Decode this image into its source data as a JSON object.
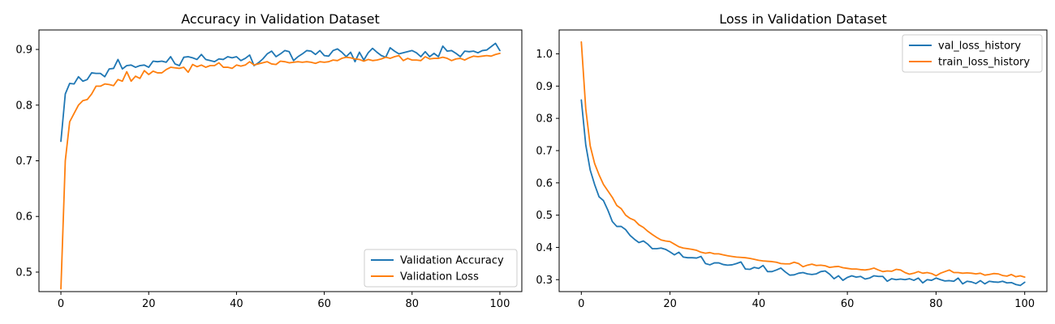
{
  "chart_data": [
    {
      "type": "line",
      "title": "Accuracy in Validation Dataset",
      "xlabel": "",
      "ylabel": "",
      "xlim": [
        -5,
        105
      ],
      "ylim": [
        0.465,
        0.935
      ],
      "xticks": [
        0,
        20,
        40,
        60,
        80,
        100
      ],
      "yticks": [
        0.5,
        0.6,
        0.7,
        0.8,
        0.9
      ],
      "xtick_labels": [
        "0",
        "20",
        "40",
        "60",
        "80",
        "100"
      ],
      "ytick_labels": [
        "0.5",
        "0.6",
        "0.7",
        "0.8",
        "0.9"
      ],
      "legend_position": "lower-right",
      "series": [
        {
          "name": "Validation Accuracy",
          "color": "#1f77b4",
          "values": [
            0.735,
            0.82,
            0.839,
            0.838,
            0.851,
            0.843,
            0.846,
            0.858,
            0.857,
            0.857,
            0.851,
            0.865,
            0.866,
            0.882,
            0.865,
            0.871,
            0.872,
            0.868,
            0.871,
            0.872,
            0.868,
            0.879,
            0.878,
            0.879,
            0.877,
            0.887,
            0.874,
            0.871,
            0.886,
            0.887,
            0.885,
            0.882,
            0.891,
            0.882,
            0.88,
            0.878,
            0.883,
            0.882,
            0.887,
            0.885,
            0.887,
            0.88,
            0.884,
            0.89,
            0.871,
            0.876,
            0.883,
            0.892,
            0.897,
            0.887,
            0.892,
            0.898,
            0.896,
            0.88,
            0.887,
            0.892,
            0.898,
            0.897,
            0.891,
            0.898,
            0.889,
            0.888,
            0.898,
            0.901,
            0.895,
            0.887,
            0.895,
            0.878,
            0.895,
            0.881,
            0.894,
            0.902,
            0.895,
            0.889,
            0.886,
            0.903,
            0.897,
            0.892,
            0.894,
            0.896,
            0.898,
            0.894,
            0.887,
            0.896,
            0.887,
            0.893,
            0.887,
            0.906,
            0.897,
            0.898,
            0.893,
            0.887,
            0.897,
            0.896,
            0.897,
            0.894,
            0.898,
            0.899,
            0.905,
            0.911,
            0.898
          ]
        },
        {
          "name": "Validation Loss",
          "color": "#ff7f0e",
          "values": [
            0.47,
            0.7,
            0.77,
            0.785,
            0.8,
            0.808,
            0.81,
            0.82,
            0.834,
            0.834,
            0.838,
            0.837,
            0.835,
            0.846,
            0.843,
            0.86,
            0.843,
            0.852,
            0.848,
            0.862,
            0.855,
            0.861,
            0.858,
            0.858,
            0.864,
            0.868,
            0.867,
            0.866,
            0.868,
            0.859,
            0.873,
            0.869,
            0.872,
            0.868,
            0.871,
            0.871,
            0.876,
            0.868,
            0.868,
            0.866,
            0.872,
            0.87,
            0.872,
            0.878,
            0.872,
            0.874,
            0.876,
            0.878,
            0.874,
            0.873,
            0.879,
            0.878,
            0.876,
            0.877,
            0.878,
            0.877,
            0.878,
            0.877,
            0.875,
            0.878,
            0.877,
            0.878,
            0.881,
            0.88,
            0.884,
            0.886,
            0.885,
            0.883,
            0.882,
            0.879,
            0.882,
            0.88,
            0.881,
            0.883,
            0.886,
            0.884,
            0.887,
            0.889,
            0.88,
            0.884,
            0.881,
            0.881,
            0.88,
            0.887,
            0.883,
            0.884,
            0.884,
            0.886,
            0.884,
            0.88,
            0.883,
            0.884,
            0.881,
            0.885,
            0.888,
            0.887,
            0.888,
            0.889,
            0.888,
            0.891,
            0.893
          ]
        }
      ]
    },
    {
      "type": "line",
      "title": "Loss in Validation Dataset",
      "xlabel": "",
      "ylabel": "",
      "xlim": [
        -5,
        105
      ],
      "ylim": [
        0.263,
        1.074
      ],
      "xticks": [
        0,
        20,
        40,
        60,
        80,
        100
      ],
      "yticks": [
        0.3,
        0.4,
        0.5,
        0.6,
        0.7,
        0.8,
        0.9,
        1.0
      ],
      "xtick_labels": [
        "0",
        "20",
        "40",
        "60",
        "80",
        "100"
      ],
      "ytick_labels": [
        "0.3",
        "0.4",
        "0.5",
        "0.6",
        "0.7",
        "0.8",
        "0.9",
        "1.0"
      ],
      "legend_position": "upper-right",
      "series": [
        {
          "name": "val_loss_history",
          "color": "#1f77b4",
          "values": [
            0.857,
            0.718,
            0.64,
            0.595,
            0.557,
            0.545,
            0.515,
            0.48,
            0.465,
            0.465,
            0.455,
            0.437,
            0.425,
            0.415,
            0.42,
            0.41,
            0.396,
            0.396,
            0.398,
            0.394,
            0.386,
            0.377,
            0.385,
            0.37,
            0.368,
            0.368,
            0.367,
            0.372,
            0.35,
            0.346,
            0.352,
            0.352,
            0.347,
            0.345,
            0.346,
            0.35,
            0.355,
            0.333,
            0.332,
            0.338,
            0.335,
            0.344,
            0.325,
            0.325,
            0.33,
            0.336,
            0.324,
            0.314,
            0.315,
            0.32,
            0.322,
            0.318,
            0.316,
            0.318,
            0.325,
            0.327,
            0.317,
            0.303,
            0.312,
            0.298,
            0.307,
            0.312,
            0.308,
            0.31,
            0.302,
            0.305,
            0.312,
            0.31,
            0.31,
            0.295,
            0.303,
            0.3,
            0.302,
            0.3,
            0.303,
            0.298,
            0.305,
            0.29,
            0.3,
            0.298,
            0.305,
            0.3,
            0.296,
            0.297,
            0.295,
            0.305,
            0.287,
            0.295,
            0.293,
            0.288,
            0.297,
            0.287,
            0.295,
            0.293,
            0.292,
            0.295,
            0.29,
            0.291,
            0.285,
            0.282,
            0.292
          ]
        },
        {
          "name": "train_loss_history",
          "color": "#ff7f0e",
          "values": [
            1.037,
            0.83,
            0.715,
            0.66,
            0.625,
            0.595,
            0.575,
            0.555,
            0.53,
            0.52,
            0.5,
            0.49,
            0.484,
            0.47,
            0.462,
            0.45,
            0.44,
            0.431,
            0.423,
            0.42,
            0.418,
            0.41,
            0.402,
            0.398,
            0.396,
            0.394,
            0.391,
            0.385,
            0.382,
            0.384,
            0.38,
            0.38,
            0.377,
            0.374,
            0.372,
            0.37,
            0.369,
            0.368,
            0.366,
            0.363,
            0.36,
            0.358,
            0.357,
            0.356,
            0.354,
            0.35,
            0.349,
            0.349,
            0.354,
            0.35,
            0.34,
            0.345,
            0.348,
            0.344,
            0.345,
            0.343,
            0.338,
            0.34,
            0.341,
            0.337,
            0.335,
            0.333,
            0.333,
            0.331,
            0.33,
            0.332,
            0.336,
            0.33,
            0.325,
            0.327,
            0.326,
            0.332,
            0.33,
            0.322,
            0.317,
            0.32,
            0.325,
            0.32,
            0.322,
            0.319,
            0.312,
            0.32,
            0.325,
            0.33,
            0.322,
            0.322,
            0.32,
            0.321,
            0.32,
            0.318,
            0.32,
            0.314,
            0.316,
            0.319,
            0.318,
            0.313,
            0.311,
            0.316,
            0.309,
            0.312,
            0.308
          ]
        }
      ]
    }
  ]
}
